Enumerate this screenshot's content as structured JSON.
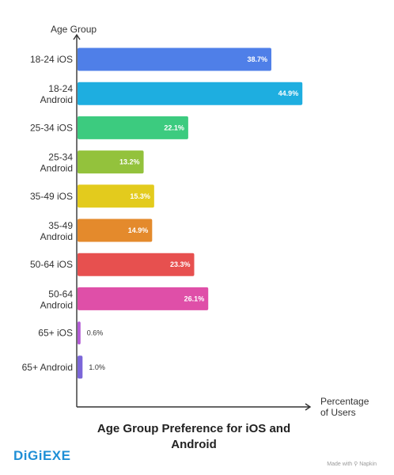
{
  "chart_data": {
    "type": "bar",
    "orientation": "horizontal",
    "title": "Age Group Preference for iOS and Android",
    "xlabel": "Percentage of Users",
    "ylabel": "Age Group",
    "xlim": [
      0,
      50
    ],
    "grid": false,
    "categories": [
      "18-24 iOS",
      "18-24 Android",
      "25-34 iOS",
      "25-34 Android",
      "35-49 iOS",
      "35-49 Android",
      "50-64 iOS",
      "50-64 Android",
      "65+ iOS",
      "65+ Android"
    ],
    "values": [
      38.7,
      44.9,
      22.1,
      13.2,
      15.3,
      14.9,
      23.3,
      26.1,
      0.6,
      1.0
    ],
    "value_labels": [
      "38.7%",
      "44.9%",
      "22.1%",
      "13.2%",
      "15.3%",
      "14.9%",
      "23.3%",
      "26.1%",
      "0.6%",
      "1.0%"
    ],
    "colors": [
      "#4f7fe8",
      "#1eaee0",
      "#3ccb7f",
      "#93c23c",
      "#e3cb1d",
      "#e48a2c",
      "#e7504f",
      "#df4fa8",
      "#b35bd6",
      "#7b66d8"
    ]
  },
  "brand": {
    "name": "DiGiEXE",
    "color": "#1f8fd6"
  },
  "watermark": "Made with ⚲ Napkin"
}
